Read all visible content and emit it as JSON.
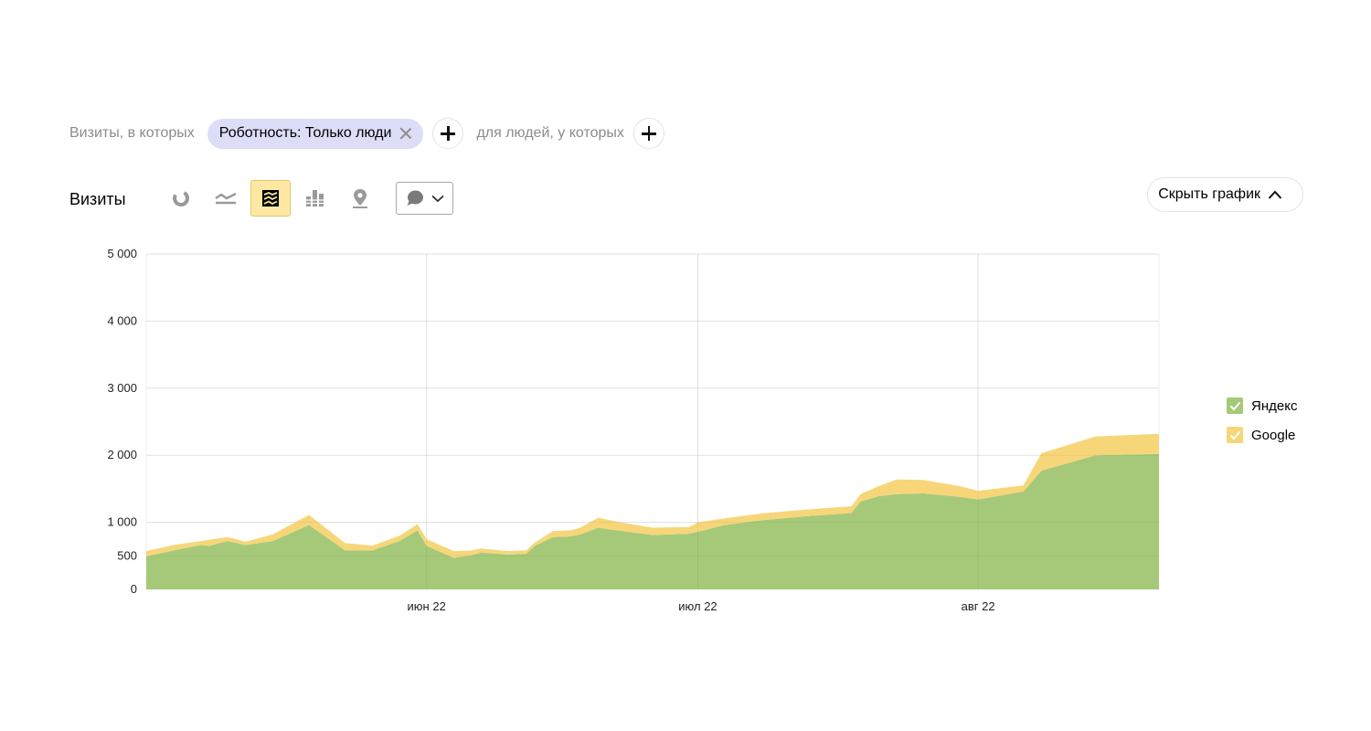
{
  "filters": {
    "visits_label": "Визиты, в которых",
    "chip_label": "Роботность: Только люди",
    "people_label": "для людей, у которых"
  },
  "toolbar": {
    "title": "Визиты",
    "chart_types": [
      {
        "name": "pie-chart",
        "active": false
      },
      {
        "name": "line-chart",
        "active": false
      },
      {
        "name": "stacked-area-chart",
        "active": true
      },
      {
        "name": "stacked-bar-chart",
        "active": false
      },
      {
        "name": "map-chart",
        "active": false
      }
    ],
    "notes_icon": "comment-icon",
    "hide_chart_label": "Скрыть график"
  },
  "chart_data": {
    "type": "area",
    "stacked": true,
    "x": [
      "2022-05-01",
      "2022-05-04",
      "2022-05-07",
      "2022-05-08",
      "2022-05-10",
      "2022-05-12",
      "2022-05-15",
      "2022-05-19",
      "2022-05-23",
      "2022-05-26",
      "2022-05-29",
      "2022-05-31",
      "2022-06-01",
      "2022-06-04",
      "2022-06-06",
      "2022-06-07",
      "2022-06-10",
      "2022-06-12",
      "2022-06-13",
      "2022-06-15",
      "2022-06-17",
      "2022-06-18",
      "2022-06-20",
      "2022-06-22",
      "2022-06-26",
      "2022-06-30",
      "2022-07-01",
      "2022-07-04",
      "2022-07-08",
      "2022-07-13",
      "2022-07-18",
      "2022-07-19",
      "2022-07-21",
      "2022-07-23",
      "2022-07-26",
      "2022-07-30",
      "2022-08-01",
      "2022-08-06",
      "2022-08-08",
      "2022-08-14",
      "2022-08-21"
    ],
    "series": [
      {
        "name": "Яндекс",
        "color": "#a6c979",
        "values": [
          490,
          580,
          660,
          650,
          720,
          660,
          720,
          960,
          580,
          580,
          720,
          880,
          650,
          470,
          510,
          550,
          520,
          530,
          650,
          780,
          790,
          820,
          920,
          880,
          810,
          830,
          860,
          960,
          1030,
          1090,
          1140,
          1310,
          1390,
          1420,
          1430,
          1380,
          1340,
          1460,
          1770,
          2000,
          2020
        ]
      },
      {
        "name": "Google",
        "color": "#f7d67a",
        "values": [
          80,
          80,
          60,
          90,
          60,
          50,
          100,
          150,
          110,
          70,
          80,
          90,
          100,
          100,
          70,
          60,
          50,
          50,
          50,
          90,
          90,
          100,
          150,
          130,
          110,
          100,
          140,
          100,
          100,
          100,
          100,
          110,
          150,
          220,
          200,
          160,
          130,
          90,
          260,
          280,
          300
        ]
      }
    ],
    "x_ticks": [
      {
        "date": "2022-06-01",
        "label": "июн 22"
      },
      {
        "date": "2022-07-01",
        "label": "июл 22"
      },
      {
        "date": "2022-08-01",
        "label": "авг 22"
      }
    ],
    "y_ticks": [
      0,
      500,
      1000,
      2000,
      3000,
      4000,
      5000
    ],
    "y_tick_labels": [
      "0",
      "500",
      "1 000",
      "2 000",
      "3 000",
      "4 000",
      "5 000"
    ],
    "ylim": [
      0,
      5000
    ],
    "xlim": [
      "2022-05-01",
      "2022-08-21"
    ],
    "grid": true,
    "legend_position": "right"
  }
}
